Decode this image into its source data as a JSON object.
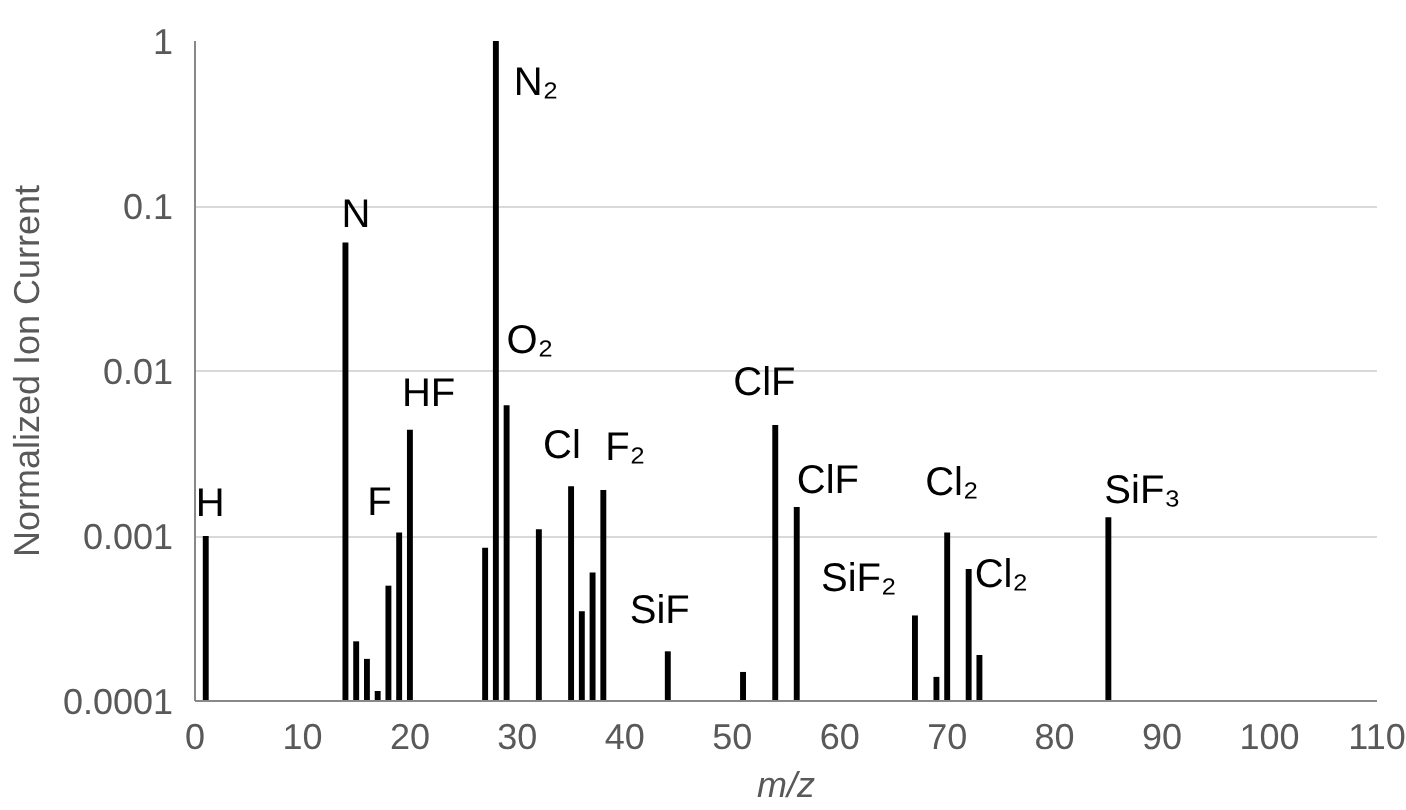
{
  "chart_data": {
    "type": "bar",
    "xlabel": "m/z",
    "ylabel": "Normalized Ion Current",
    "x": [
      1,
      14,
      15,
      16,
      17,
      18,
      19,
      20,
      27,
      28,
      29,
      32,
      35,
      36,
      37,
      38,
      44,
      51,
      54,
      56,
      67,
      69,
      70,
      72,
      73,
      85
    ],
    "values": [
      0.001,
      0.06,
      0.00023,
      0.00018,
      0.000115,
      0.0005,
      0.00105,
      0.0044,
      0.00085,
      1,
      0.0062,
      0.0011,
      0.002,
      0.00035,
      0.0006,
      0.0019,
      0.0002,
      0.00015,
      0.0047,
      0.0015,
      0.00033,
      0.00014,
      0.00105,
      0.00063,
      0.00019,
      0.0013
    ],
    "color": "#000000",
    "log": "y",
    "xlim": [
      0,
      110
    ],
    "xticks": [
      0,
      10,
      20,
      30,
      40,
      50,
      60,
      70,
      80,
      90,
      100,
      110
    ],
    "ylim": [
      0.0001,
      1
    ],
    "yticks": [
      {
        "value": 0.0001,
        "label": "0.0001"
      },
      {
        "value": 0.001,
        "label": "0.001"
      },
      {
        "value": 0.01,
        "label": "0.01"
      },
      {
        "value": 0.1,
        "label": "0.1"
      },
      {
        "value": 1,
        "label": "1"
      }
    ],
    "grid": "y",
    "annotations": [
      {
        "text": "H",
        "x": 1,
        "y": 0.001
      },
      {
        "text": "N",
        "x": 14,
        "y": 0.06
      },
      {
        "text": "N₂",
        "x": 28,
        "y": 1
      },
      {
        "text": "O₂",
        "x": 29,
        "y": 0.0062
      },
      {
        "text": "HF",
        "x": 20,
        "y": 0.0044
      },
      {
        "text": "F",
        "x": 19,
        "y": 0.00105
      },
      {
        "text": "Cl",
        "x": 35,
        "y": 0.002
      },
      {
        "text": "F₂",
        "x": 38,
        "y": 0.0019
      },
      {
        "text": "SiF",
        "x": 44,
        "y": 0.0002
      },
      {
        "text": "ClF",
        "x": 54,
        "y": 0.0047
      },
      {
        "text": "ClF",
        "x": 56,
        "y": 0.0015
      },
      {
        "text": "SiF₂",
        "x": 67,
        "y": 0.00033
      },
      {
        "text": "Cl₂",
        "x": 70,
        "y": 0.00105
      },
      {
        "text": "Cl₂",
        "x": 72,
        "y": 0.00063
      },
      {
        "text": "SiF₃",
        "x": 85,
        "y": 0.0013
      }
    ]
  }
}
